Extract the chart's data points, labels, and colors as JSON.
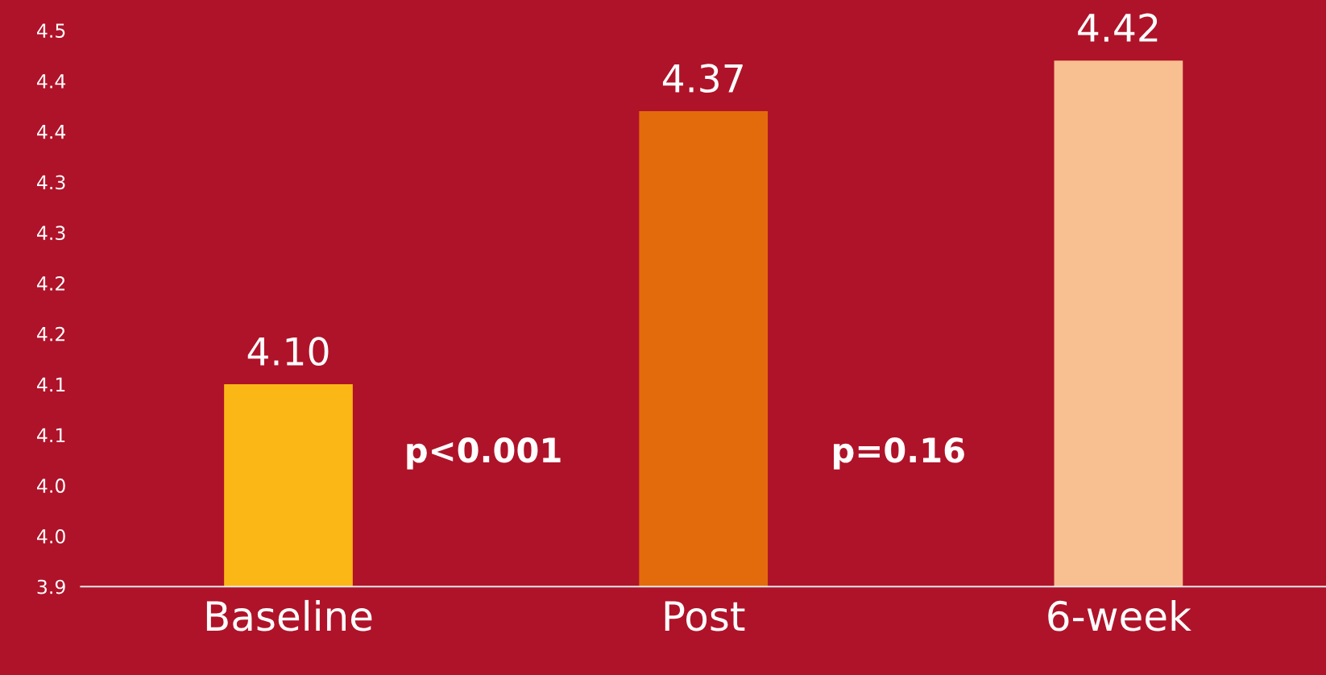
{
  "chart_data": {
    "type": "bar",
    "categories": [
      "Baseline",
      "Post",
      "6-week"
    ],
    "values": [
      4.1,
      4.37,
      4.42
    ],
    "colors": [
      "#fbb715",
      "#e36b0b",
      "#f8bf90"
    ],
    "ylim": [
      3.9,
      4.48
    ],
    "yticks": [
      {
        "value": 3.9,
        "label": "3.9"
      },
      {
        "value": 3.95,
        "label": "4.0"
      },
      {
        "value": 4.0,
        "label": "4.0"
      },
      {
        "value": 4.05,
        "label": "4.1"
      },
      {
        "value": 4.1,
        "label": "4.1"
      },
      {
        "value": 4.15,
        "label": "4.2"
      },
      {
        "value": 4.2,
        "label": "4.2"
      },
      {
        "value": 4.25,
        "label": "4.3"
      },
      {
        "value": 4.3,
        "label": "4.3"
      },
      {
        "value": 4.35,
        "label": "4.4"
      },
      {
        "value": 4.4,
        "label": "4.4"
      },
      {
        "value": 4.45,
        "label": "4.5"
      }
    ],
    "value_labels": [
      "4.10",
      "4.37",
      "4.42"
    ],
    "annotations": [
      "p<0.001",
      "p=0.16"
    ],
    "grid": false,
    "legend": false
  }
}
